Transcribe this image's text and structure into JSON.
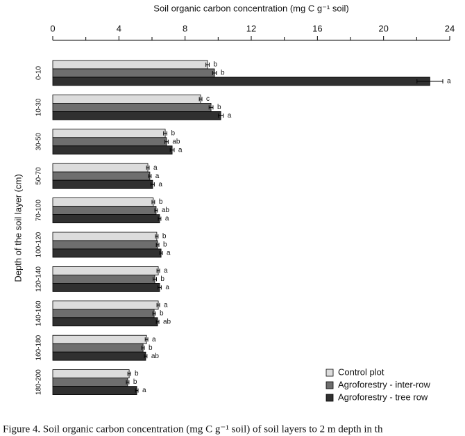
{
  "chart_data": {
    "type": "bar",
    "orientation": "horizontal",
    "title": "Soil organic carbon concentration (mg C  g⁻¹ soil)",
    "y_label": "Depth of the soil layer (cm)",
    "categories": [
      "0-10",
      "10-30",
      "30-50",
      "50-70",
      "70-100",
      "100-120",
      "120-140",
      "140-160",
      "160-180",
      "180-200"
    ],
    "series": [
      {
        "name": "Control plot",
        "color": "#dcdcdc",
        "values": [
          9.36,
          8.94,
          6.8,
          5.75,
          6.08,
          6.29,
          6.38,
          6.38,
          5.67,
          4.62
        ],
        "errors": [
          0.1,
          0.08,
          0.1,
          0.08,
          0.08,
          0.08,
          0.08,
          0.08,
          0.08,
          0.08
        ],
        "labels": [
          "b",
          "c",
          "b",
          "a",
          "b",
          "b",
          "a",
          "a",
          "a",
          "b"
        ]
      },
      {
        "name": "Agroforestry - inter-row",
        "color": "#6e6e6e",
        "values": [
          9.78,
          9.57,
          6.88,
          5.87,
          6.25,
          6.34,
          6.17,
          6.13,
          5.46,
          4.53
        ],
        "errors": [
          0.12,
          0.12,
          0.1,
          0.08,
          0.08,
          0.08,
          0.1,
          0.08,
          0.08,
          0.08
        ],
        "labels": [
          "b",
          "b",
          "ab",
          "a",
          "ab",
          "b",
          "b",
          "b",
          "b",
          "b"
        ]
      },
      {
        "name": "Agroforestry - tree row",
        "color": "#303030",
        "values": [
          22.8,
          10.16,
          7.22,
          6.04,
          6.46,
          6.55,
          6.46,
          6.34,
          5.62,
          5.08
        ],
        "errors": [
          0.78,
          0.15,
          0.12,
          0.1,
          0.08,
          0.08,
          0.1,
          0.08,
          0.08,
          0.08
        ],
        "labels": [
          "a",
          "a",
          "a",
          "a",
          "a",
          "a",
          "a",
          "ab",
          "ab",
          "a"
        ]
      }
    ],
    "xlim": [
      0,
      24
    ],
    "xticks": [
      0,
      4,
      8,
      12,
      16,
      20,
      24
    ],
    "xminorticks": [
      2,
      6,
      10,
      14,
      18,
      22
    ],
    "legend": "bottom-right",
    "caption": "Figure 4. Soil organic carbon concentration (mg C g⁻¹ soil) of soil layers to 2 m depth in th"
  }
}
